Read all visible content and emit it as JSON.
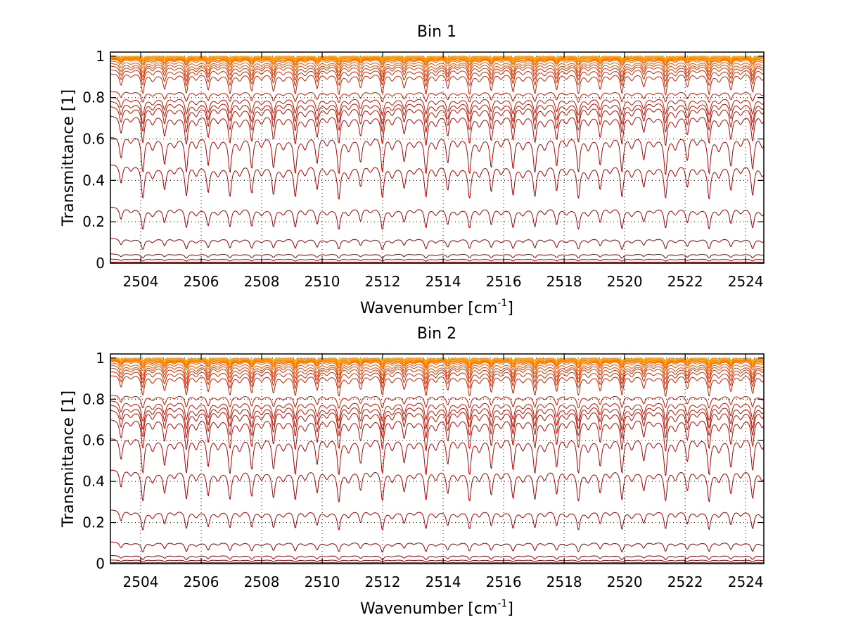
{
  "chart_data": [
    {
      "type": "line",
      "title": "Bin 1",
      "xlabel": "Wavenumber [cm",
      "xlabel_superscript": "-1",
      "xlabel_suffix": "]",
      "ylabel": "Transmittance [1]",
      "xlim": [
        2503.0,
        2524.6
      ],
      "ylim": [
        0,
        1.02
      ],
      "xticks": [
        2504,
        2506,
        2508,
        2510,
        2512,
        2514,
        2516,
        2518,
        2520,
        2522,
        2524
      ],
      "xtick_labels": [
        "2504",
        "2506",
        "2508",
        "2510",
        "2512",
        "2514",
        "2516",
        "2518",
        "2520",
        "2522",
        "2524"
      ],
      "yticks": [
        0,
        0.2,
        0.4,
        0.6,
        0.8,
        1
      ],
      "ytick_labels": [
        "0",
        "0.2",
        "0.4",
        "0.6",
        "0.8",
        "1"
      ],
      "grid": true,
      "line_spacing_cm1": 0.72,
      "series": [
        {
          "baseline": 1.0,
          "depth": 0.01,
          "color": "#ff9900"
        },
        {
          "baseline": 1.0,
          "depth": 0.015,
          "color": "#ffaa00"
        },
        {
          "baseline": 0.995,
          "depth": 0.02,
          "color": "#ff8800"
        },
        {
          "baseline": 0.99,
          "depth": 0.03,
          "color": "#ff7700"
        },
        {
          "baseline": 0.985,
          "depth": 0.04,
          "color": "#f06000"
        },
        {
          "baseline": 0.975,
          "depth": 0.05,
          "color": "#e85000"
        },
        {
          "baseline": 0.965,
          "depth": 0.06,
          "color": "#e04000"
        },
        {
          "baseline": 0.955,
          "depth": 0.07,
          "color": "#d83000"
        },
        {
          "baseline": 0.94,
          "depth": 0.08,
          "color": "#d02800"
        },
        {
          "baseline": 0.92,
          "depth": 0.1,
          "color": "#cc2000"
        },
        {
          "baseline": 0.83,
          "depth": 0.05,
          "color": "#c81800"
        },
        {
          "baseline": 0.8,
          "depth": 0.08,
          "color": "#c41400"
        },
        {
          "baseline": 0.78,
          "depth": 0.1,
          "color": "#c01000"
        },
        {
          "baseline": 0.76,
          "depth": 0.12,
          "color": "#bc0c00"
        },
        {
          "baseline": 0.72,
          "depth": 0.14,
          "color": "#b80800"
        },
        {
          "baseline": 0.62,
          "depth": 0.18,
          "color": "#b40400"
        },
        {
          "baseline": 0.48,
          "depth": 0.16,
          "color": "#b00000"
        },
        {
          "baseline": 0.27,
          "depth": 0.1,
          "color": "#a80000"
        },
        {
          "baseline": 0.12,
          "depth": 0.05,
          "color": "#a00000"
        },
        {
          "baseline": 0.045,
          "depth": 0.02,
          "color": "#980000"
        },
        {
          "baseline": 0.02,
          "depth": 0.01,
          "color": "#900000"
        },
        {
          "baseline": 0.005,
          "depth": 0.002,
          "color": "#800000"
        }
      ]
    },
    {
      "type": "line",
      "title": "Bin 2",
      "xlabel": "Wavenumber [cm",
      "xlabel_superscript": "-1",
      "xlabel_suffix": "]",
      "ylabel": "Transmittance [1]",
      "xlim": [
        2503.0,
        2524.6
      ],
      "ylim": [
        0,
        1.02
      ],
      "xticks": [
        2504,
        2506,
        2508,
        2510,
        2512,
        2514,
        2516,
        2518,
        2520,
        2522,
        2524
      ],
      "xtick_labels": [
        "2504",
        "2506",
        "2508",
        "2510",
        "2512",
        "2514",
        "2516",
        "2518",
        "2520",
        "2522",
        "2524"
      ],
      "yticks": [
        0,
        0.2,
        0.4,
        0.6,
        0.8,
        1
      ],
      "ytick_labels": [
        "0",
        "0.2",
        "0.4",
        "0.6",
        "0.8",
        "1"
      ],
      "grid": true,
      "line_spacing_cm1": 0.72,
      "series": [
        {
          "baseline": 1.0,
          "depth": 0.012,
          "color": "#ff9900"
        },
        {
          "baseline": 1.0,
          "depth": 0.018,
          "color": "#ffaa00"
        },
        {
          "baseline": 0.995,
          "depth": 0.025,
          "color": "#ff8800"
        },
        {
          "baseline": 0.99,
          "depth": 0.035,
          "color": "#ff7700"
        },
        {
          "baseline": 0.985,
          "depth": 0.045,
          "color": "#f06000"
        },
        {
          "baseline": 0.975,
          "depth": 0.055,
          "color": "#e85000"
        },
        {
          "baseline": 0.965,
          "depth": 0.065,
          "color": "#e04000"
        },
        {
          "baseline": 0.955,
          "depth": 0.075,
          "color": "#d83000"
        },
        {
          "baseline": 0.94,
          "depth": 0.085,
          "color": "#d02800"
        },
        {
          "baseline": 0.92,
          "depth": 0.1,
          "color": "#cc2000"
        },
        {
          "baseline": 0.82,
          "depth": 0.06,
          "color": "#c81800"
        },
        {
          "baseline": 0.79,
          "depth": 0.09,
          "color": "#c41400"
        },
        {
          "baseline": 0.77,
          "depth": 0.11,
          "color": "#c01000"
        },
        {
          "baseline": 0.75,
          "depth": 0.13,
          "color": "#bc0c00"
        },
        {
          "baseline": 0.71,
          "depth": 0.15,
          "color": "#b80800"
        },
        {
          "baseline": 0.62,
          "depth": 0.18,
          "color": "#b40400"
        },
        {
          "baseline": 0.46,
          "depth": 0.15,
          "color": "#b00000"
        },
        {
          "baseline": 0.26,
          "depth": 0.09,
          "color": "#a80000"
        },
        {
          "baseline": 0.105,
          "depth": 0.045,
          "color": "#a00000"
        },
        {
          "baseline": 0.04,
          "depth": 0.02,
          "color": "#980000"
        },
        {
          "baseline": 0.018,
          "depth": 0.01,
          "color": "#900000"
        },
        {
          "baseline": 0.005,
          "depth": 0.002,
          "color": "#800000"
        }
      ]
    }
  ]
}
